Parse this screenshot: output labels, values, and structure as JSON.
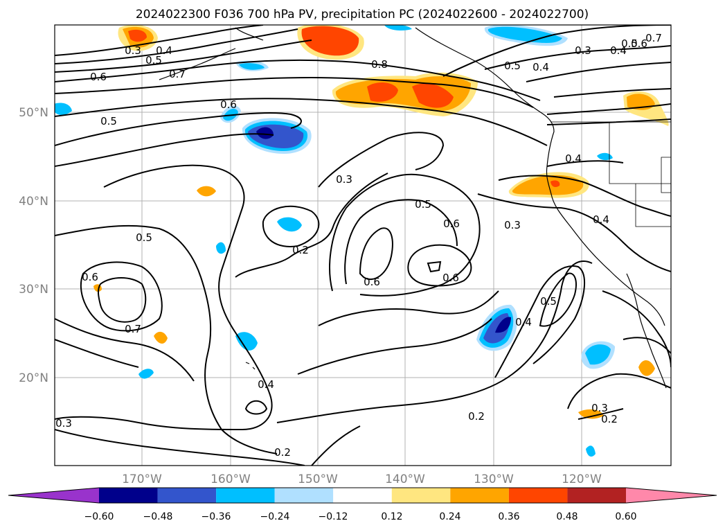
{
  "title": "2024022300 F036 700 hPa PV, precipitation PC (2024022600 - 2024022700)",
  "map": {
    "lat_labels": [
      "50°N",
      "40°N",
      "30°N",
      "20°N"
    ],
    "lon_labels": [
      "170°W",
      "160°W",
      "150°W",
      "140°W",
      "130°W",
      "120°W"
    ],
    "colors": {
      "ocean": "#ffffff",
      "gridline": "#b0b0b0",
      "contour": "#000000"
    }
  },
  "contour_labels": [
    "0.3",
    "0.4",
    "0.5",
    "0.6",
    "0.7",
    "0.8",
    "0.5",
    "0.4",
    "0.3",
    "0.4",
    "0.5",
    "0.6",
    "0.7",
    "0.6",
    "0.5",
    "0.3",
    "0.4",
    "0.3",
    "0.5",
    "0.2",
    "0.6",
    "0.6",
    "0.6",
    "0.7",
    "0.5",
    "0.4",
    "0.4",
    "0.5",
    "0.3",
    "0.2",
    "0.4",
    "0.2",
    "0.2",
    "0.3",
    "0.6"
  ],
  "colorbar": {
    "ticks": [
      "−0.60",
      "−0.48",
      "−0.36",
      "−0.24",
      "−0.12",
      "0.12",
      "0.24",
      "0.36",
      "0.48",
      "0.60"
    ],
    "colors": [
      "#9933cc",
      "#00008b",
      "#3355cc",
      "#00bfff",
      "#b0e0ff",
      "#ffffff",
      "#ffe680",
      "#ffa500",
      "#ff4500",
      "#b22222",
      "#ff88aa"
    ]
  }
}
